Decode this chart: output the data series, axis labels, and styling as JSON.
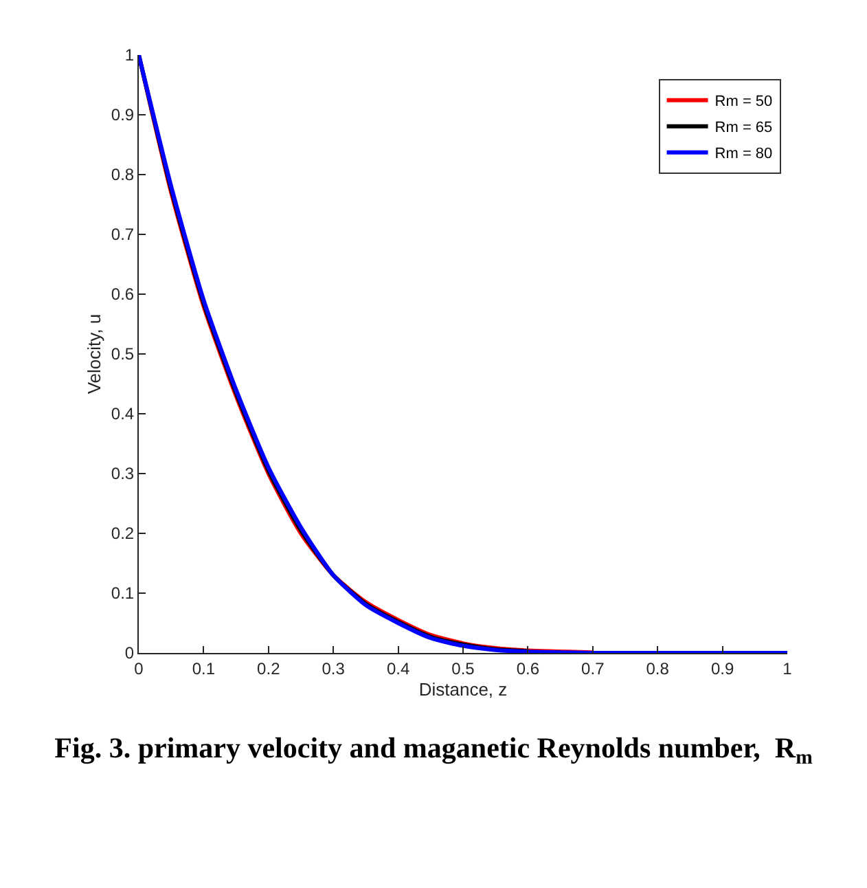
{
  "chart_data": {
    "type": "line",
    "title": "Fig. 3. primary velocity and maganetic Reynolds number,  R$_{m}$",
    "xlabel": "Distance, z",
    "ylabel": "Velocity, u",
    "x": [
      0,
      0.05,
      0.1,
      0.15,
      0.2,
      0.25,
      0.3,
      0.35,
      0.4,
      0.45,
      0.5,
      0.55,
      0.6,
      0.7,
      0.8,
      0.9,
      1
    ],
    "series": [
      {
        "name": "Rm = 50",
        "color": "#ff0000",
        "values": [
          1,
          0.77,
          0.58,
          0.43,
          0.3,
          0.2,
          0.13,
          0.085,
          0.055,
          0.03,
          0.016,
          0.008,
          0.004,
          0.001,
          null,
          null,
          null
        ]
      },
      {
        "name": "Rm = 65",
        "color": "#000000",
        "values": [
          1,
          0.775,
          0.585,
          0.435,
          0.305,
          0.205,
          0.13,
          0.082,
          0.052,
          0.027,
          0.014,
          0.006,
          0.003,
          null,
          null,
          null,
          null
        ]
      },
      {
        "name": "Rm = 80",
        "color": "#0000ff",
        "values": [
          1,
          0.78,
          0.59,
          0.44,
          0.31,
          0.21,
          0.13,
          0.08,
          0.05,
          0.025,
          0.012,
          0.005,
          0.002,
          0,
          0,
          0,
          0
        ]
      }
    ],
    "xlim": [
      0,
      1
    ],
    "ylim": [
      0,
      1
    ],
    "xticks": [
      0,
      0.1,
      0.2,
      0.3,
      0.4,
      0.5,
      0.6,
      0.7,
      0.8,
      0.9,
      1
    ],
    "yticks": [
      0,
      0.1,
      0.2,
      0.3,
      0.4,
      0.5,
      0.6,
      0.7,
      0.8,
      0.9,
      1
    ],
    "legend": "top right",
    "marker": "none",
    "line_style": "solid"
  }
}
